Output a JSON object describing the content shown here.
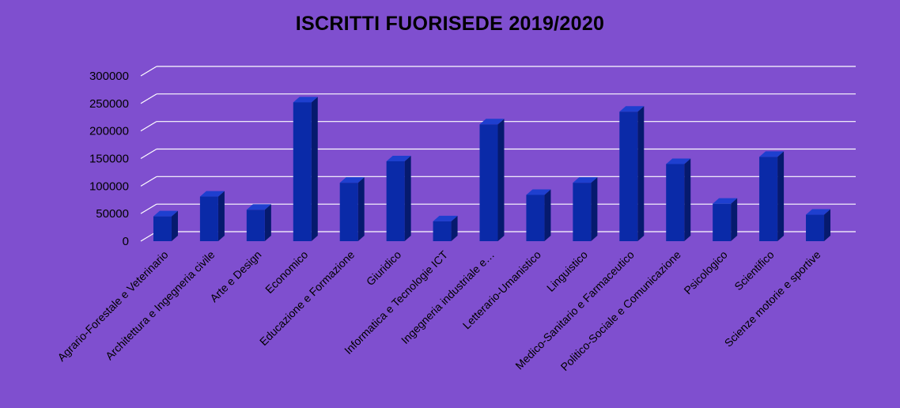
{
  "chart_data": {
    "type": "bar",
    "title": "ISCRITTI FUORISEDE 2019/2020",
    "categories": [
      "Agrario-Forestale e Veterinario",
      "Architettura e Ingegneria civile",
      "Arte e Design",
      "Economico",
      "Educazione e Formazione",
      "Giuridico",
      "Informatica e Tecnologie ICT",
      "Ingegneria industriale e…",
      "Letterario-Umanistico",
      "Linguistico",
      "Medico-Sanitario e Farmaceutico",
      "Politico-Sociale e Comunicazione",
      "Psicologico",
      "Scientifico",
      "Scienze motorie e sportive"
    ],
    "values": [
      45000,
      81000,
      57000,
      252000,
      106000,
      145000,
      36000,
      212000,
      84000,
      106000,
      235000,
      140000,
      68000,
      153000,
      48000
    ],
    "ylim": [
      0,
      300000
    ],
    "yticks": [
      "0",
      "50000",
      "100000",
      "150000",
      "200000",
      "250000",
      "300000"
    ],
    "grid": true,
    "legend": "none",
    "colors": {
      "background": "#7f4fcf",
      "bar_front": "#0a2aa8",
      "bar_side": "#061a6e",
      "bar_top": "#1e3fcf",
      "grid": "#ffffff"
    }
  }
}
